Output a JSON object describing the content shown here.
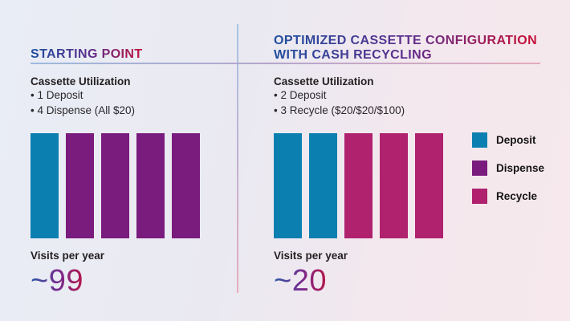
{
  "colors": {
    "deposit": "#0b80b0",
    "dispense": "#7a1b7e",
    "recycle": "#b0216e",
    "body_text": "#231f20",
    "title_gradient": [
      "#1d4f9f",
      "#5f2d8c",
      "#c2113a"
    ]
  },
  "panels": [
    {
      "title_lines": [
        "STARTING POINT"
      ],
      "section_title": "Cassette Utilization",
      "bullets": [
        "1 Deposit",
        "4 Dispense (All $20)"
      ],
      "bars": [
        "deposit",
        "dispense",
        "dispense",
        "dispense",
        "dispense"
      ],
      "visits_label": "Visits per year",
      "visits_value": "~99"
    },
    {
      "title_lines": [
        "OPTIMIZED CASSETTE CONFIGURATION",
        "WITH CASH RECYCLING"
      ],
      "section_title": "Cassette Utilization",
      "bullets": [
        "2 Deposit",
        "3 Recycle ($20/$20/$100)"
      ],
      "bars": [
        "deposit",
        "deposit",
        "recycle",
        "recycle",
        "recycle"
      ],
      "visits_label": "Visits per year",
      "visits_value": "~20"
    }
  ],
  "legend": {
    "items": [
      {
        "label": "Deposit",
        "role": "deposit"
      },
      {
        "label": "Dispense",
        "role": "dispense"
      },
      {
        "label": "Recycle",
        "role": "recycle"
      }
    ]
  },
  "chart_data": [
    {
      "type": "bar",
      "title": "STARTING POINT",
      "subtitle": "Cassette Utilization: 1 Deposit, 4 Dispense (All $20)",
      "categories": [
        "Deposit",
        "Dispense"
      ],
      "values": [
        1,
        4
      ],
      "annotations": [
        "Visits per year ~99"
      ],
      "legend_position": "none",
      "grid": false
    },
    {
      "type": "bar",
      "title": "OPTIMIZED CASSETTE CONFIGURATION WITH CASH RECYCLING",
      "subtitle": "Cassette Utilization: 2 Deposit, 3 Recycle ($20/$20/$100)",
      "categories": [
        "Deposit",
        "Recycle"
      ],
      "values": [
        2,
        3
      ],
      "annotations": [
        "Visits per year ~20"
      ],
      "legend_position": "right",
      "grid": false
    }
  ]
}
